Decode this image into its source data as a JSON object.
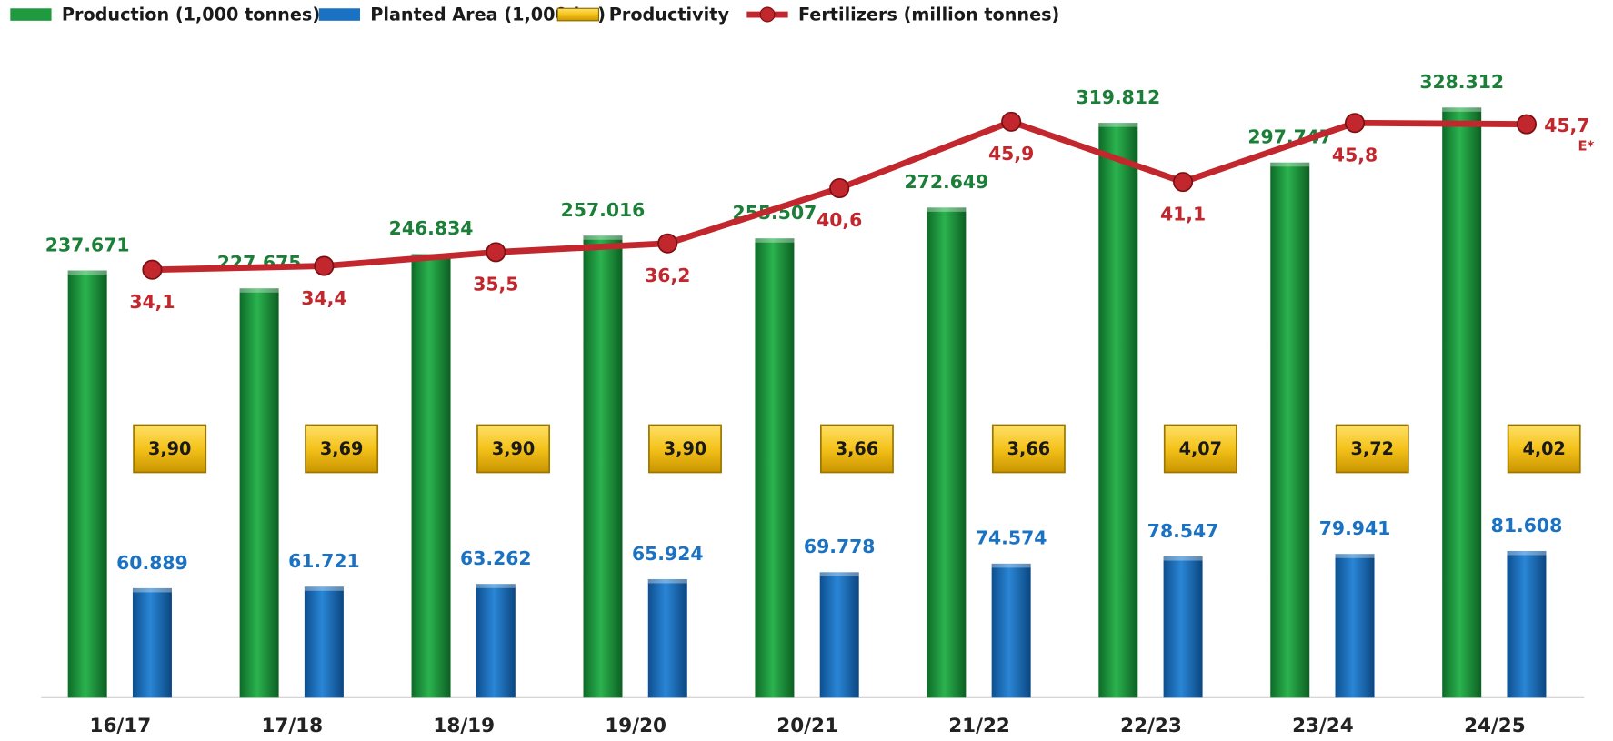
{
  "chart_data": {
    "type": "bar-line",
    "categories": [
      "16/17",
      "17/18",
      "18/19",
      "19/20",
      "20/21",
      "21/22",
      "22/23",
      "23/24",
      "24/25"
    ],
    "ylim": [
      0,
      340000
    ],
    "y2lim": [
      0,
      48.7
    ],
    "legend": "top-left",
    "series": [
      {
        "name": "Production (1,000 tonnes)",
        "type": "bar",
        "color": "#1f9a3f",
        "values": [
          237671,
          227675,
          246834,
          257016,
          255507,
          272649,
          319812,
          297747,
          328312
        ],
        "value_labels": [
          "237.671",
          "227.675",
          "246.834",
          "257.016",
          "255.507",
          "272.649",
          "319.812",
          "297.747",
          "328.312"
        ]
      },
      {
        "name": "Planted Area (1,000 ha)",
        "type": "bar",
        "color": "#1b72c2",
        "values": [
          60889,
          61721,
          63262,
          65924,
          69778,
          74574,
          78547,
          79941,
          81608
        ],
        "value_labels": [
          "60.889",
          "61.721",
          "63.262",
          "65.924",
          "69.778",
          "74.574",
          "78.547",
          "79.941",
          "81.608"
        ]
      },
      {
        "name": "Productivity",
        "type": "box",
        "color": "#f4c21a",
        "values": [
          3.9,
          3.69,
          3.9,
          3.9,
          3.66,
          3.66,
          4.07,
          3.72,
          4.02
        ],
        "value_labels": [
          "3,90",
          "3,69",
          "3,90",
          "3,90",
          "3,66",
          "3,66",
          "4,07",
          "3,72",
          "4,02"
        ]
      },
      {
        "name": "Fertilizers (million tonnes)",
        "type": "line",
        "axis": "y2",
        "color": "#c1272d",
        "values": [
          34.1,
          34.4,
          35.5,
          36.2,
          40.6,
          45.9,
          41.1,
          45.8,
          45.7
        ],
        "value_labels": [
          "34,1",
          "34,4",
          "35,5",
          "36,2",
          "40,6",
          "45,9",
          "41,1",
          "45,8",
          "45,7"
        ]
      }
    ],
    "annotations": [
      "E*"
    ]
  }
}
